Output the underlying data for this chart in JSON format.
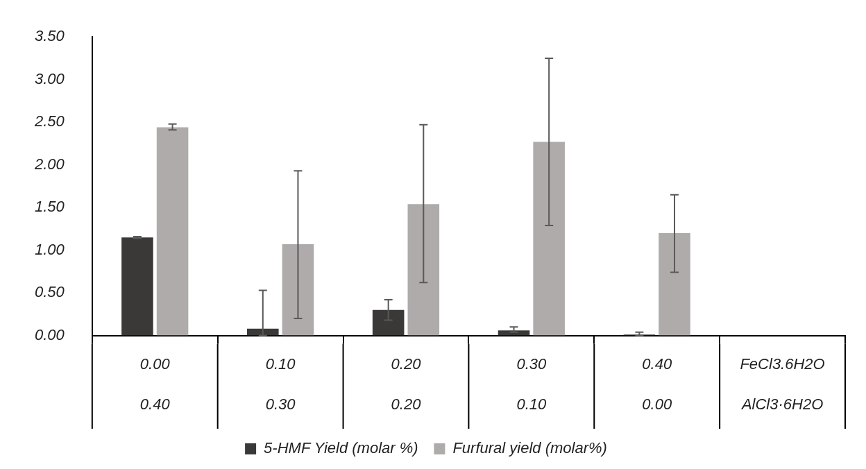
{
  "chart_data": {
    "type": "bar",
    "categories": [
      "0.00\n0.40",
      "0.10\n0.30",
      "0.20\n0.20",
      "0.30\n0.10",
      "0.40\n0.00",
      "FeCl3.6H2O\nAlCl3·6H2O"
    ],
    "series": [
      {
        "name": "5-HMF Yield (molar %)",
        "color": "#3a3937",
        "values": [
          1.15,
          0.08,
          0.3,
          0.06,
          0.01,
          null
        ],
        "errors": [
          [
            1.14,
            1.16
          ],
          [
            0,
            0.53
          ],
          [
            0.18,
            0.42
          ],
          [
            0.04,
            0.1
          ],
          [
            0,
            0.04
          ],
          null
        ]
      },
      {
        "name": "Furfural yield (molar%)",
        "color": "#aeabaa",
        "values": [
          2.44,
          1.07,
          1.54,
          2.27,
          1.2,
          null
        ],
        "errors": [
          [
            2.41,
            2.48
          ],
          [
            0.2,
            1.93
          ],
          [
            0.62,
            2.47
          ],
          [
            1.29,
            3.25
          ],
          [
            0.74,
            1.65
          ],
          null
        ]
      }
    ],
    "ylim": [
      0,
      3.5
    ],
    "yticks": [
      {
        "value": 0,
        "label": "0.00"
      },
      {
        "value": 0.5,
        "label": "0.50"
      },
      {
        "value": 1,
        "label": "1.00"
      },
      {
        "value": 1.5,
        "label": "1.50"
      },
      {
        "value": 2,
        "label": "2.00"
      },
      {
        "value": 2.5,
        "label": "2.50"
      },
      {
        "value": 3,
        "label": "3.00"
      },
      {
        "value": 3.5,
        "label": "3.50"
      }
    ],
    "grid": false,
    "legend": "bottom"
  }
}
